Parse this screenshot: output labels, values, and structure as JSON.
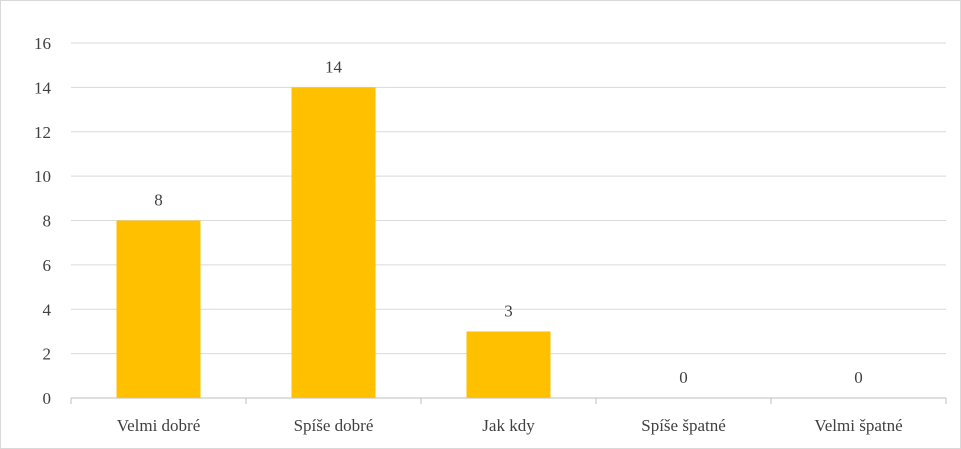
{
  "chart_data": {
    "type": "bar",
    "categories": [
      "Velmi dobré",
      "Spíše dobré",
      "Jak kdy",
      "Spíše špatné",
      "Velmi špatné"
    ],
    "values": [
      8,
      14,
      3,
      0,
      0
    ],
    "data_labels": [
      "8",
      "14",
      "3",
      "0",
      "0"
    ],
    "title": "",
    "xlabel": "",
    "ylabel": "",
    "ylim": [
      0,
      16
    ],
    "yticks": [
      0,
      2,
      4,
      6,
      8,
      10,
      12,
      14,
      16
    ],
    "ytick_labels": [
      "0",
      "2",
      "4",
      "6",
      "8",
      "10",
      "12",
      "14",
      "16"
    ],
    "grid": true,
    "legend": "none",
    "bar_color": "#FFC000",
    "grid_color": "#d9d9d9",
    "axis_color": "#bfbfbf"
  }
}
